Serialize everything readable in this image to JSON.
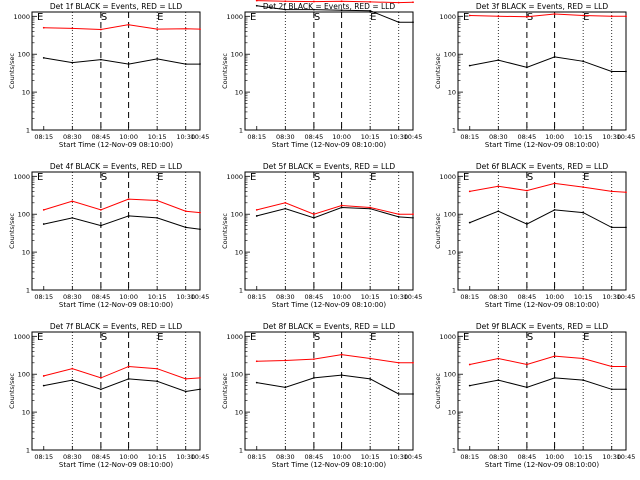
{
  "colors": {
    "events": "#000000",
    "lld": "#ff0000",
    "background": "#ffffff"
  },
  "shared": {
    "xlabel": "Start Time (12-Nov-09 08:10:00)",
    "ylabel": "Counts/sec",
    "x_ticks": [
      "08:15",
      "08:30",
      "08:45",
      "10:00",
      "10:15",
      "10:30",
      "10:45"
    ],
    "y_ticks": [
      "1",
      "10",
      "100",
      "1000"
    ],
    "markers": [
      "E",
      "S",
      "E"
    ]
  },
  "chart_data": [
    {
      "type": "line",
      "title": "Det 1f BLACK = Events, RED = LLD",
      "yscale": "log",
      "ylim": [
        1,
        1300
      ],
      "xlabel": "Start Time (12-Nov-09 08:10:00)",
      "ylabel": "Counts/sec",
      "grid": false,
      "legend": "none",
      "x": [
        "08:15",
        "08:30",
        "08:45",
        "10:00",
        "10:15",
        "10:30",
        "10:45"
      ],
      "series": [
        {
          "color": "#000000",
          "values": [
            80,
            60,
            72,
            55,
            75,
            55,
            55
          ]
        },
        {
          "color": "#ff0000",
          "values": [
            500,
            480,
            450,
            600,
            460,
            470,
            460
          ]
        }
      ]
    },
    {
      "type": "line",
      "title": "Det 2f BLACK = Events, RED = LLD",
      "yscale": "log",
      "ylim": [
        1,
        1300
      ],
      "xlabel": "Start Time (12-Nov-09 08:10:00)",
      "ylabel": "Counts/sec",
      "grid": false,
      "legend": "none",
      "x": [
        "08:15",
        "08:30",
        "08:45",
        "10:00",
        "10:15",
        "10:30",
        "10:45"
      ],
      "series": [
        {
          "color": "#000000",
          "values": [
            1900,
            1500,
            1500,
            1450,
            1400,
            700,
            700
          ]
        },
        {
          "color": "#ff0000",
          "values": [
            2600,
            2500,
            2450,
            2500,
            2400,
            2300,
            2350
          ]
        }
      ]
    },
    {
      "type": "line",
      "title": "Det 3f BLACK = Events, RED = LLD",
      "yscale": "log",
      "ylim": [
        1,
        1300
      ],
      "xlabel": "Start Time (12-Nov-09 08:10:00)",
      "ylabel": "Counts/sec",
      "grid": false,
      "legend": "none",
      "x": [
        "08:15",
        "08:30",
        "08:45",
        "10:00",
        "10:15",
        "10:30",
        "10:45"
      ],
      "series": [
        {
          "color": "#000000",
          "values": [
            50,
            70,
            45,
            85,
            65,
            35,
            35
          ]
        },
        {
          "color": "#ff0000",
          "values": [
            1050,
            1000,
            980,
            1150,
            1050,
            1000,
            1000
          ]
        }
      ]
    },
    {
      "type": "line",
      "title": "Det 4f BLACK = Events, RED = LLD",
      "yscale": "log",
      "ylim": [
        1,
        1300
      ],
      "xlabel": "Start Time (12-Nov-09 08:10:00)",
      "ylabel": "Counts/sec",
      "grid": false,
      "legend": "none",
      "x": [
        "08:15",
        "08:30",
        "08:45",
        "10:00",
        "10:15",
        "10:30",
        "10:45"
      ],
      "series": [
        {
          "color": "#000000",
          "values": [
            55,
            80,
            50,
            90,
            80,
            45,
            40
          ]
        },
        {
          "color": "#ff0000",
          "values": [
            130,
            220,
            130,
            250,
            230,
            120,
            110
          ]
        }
      ]
    },
    {
      "type": "line",
      "title": "Det 5f BLACK = Events, RED = LLD",
      "yscale": "log",
      "ylim": [
        1,
        1300
      ],
      "xlabel": "Start Time (12-Nov-09 08:10:00)",
      "ylabel": "Counts/sec",
      "grid": false,
      "legend": "none",
      "x": [
        "08:15",
        "08:30",
        "08:45",
        "10:00",
        "10:15",
        "10:30",
        "10:45"
      ],
      "series": [
        {
          "color": "#000000",
          "values": [
            90,
            140,
            80,
            150,
            140,
            85,
            80
          ]
        },
        {
          "color": "#ff0000",
          "values": [
            130,
            200,
            100,
            170,
            150,
            100,
            100
          ]
        }
      ]
    },
    {
      "type": "line",
      "title": "Det 6f BLACK = Events, RED = LLD",
      "yscale": "log",
      "ylim": [
        1,
        1300
      ],
      "xlabel": "Start Time (12-Nov-09 08:10:00)",
      "ylabel": "Counts/sec",
      "grid": false,
      "legend": "none",
      "x": [
        "08:15",
        "08:30",
        "08:45",
        "10:00",
        "10:15",
        "10:30",
        "10:45"
      ],
      "series": [
        {
          "color": "#000000",
          "values": [
            60,
            120,
            55,
            130,
            110,
            45,
            45
          ]
        },
        {
          "color": "#ff0000",
          "values": [
            400,
            550,
            420,
            650,
            520,
            400,
            380
          ]
        }
      ]
    },
    {
      "type": "line",
      "title": "Det 7f BLACK = Events, RED = LLD",
      "yscale": "log",
      "ylim": [
        1,
        1300
      ],
      "xlabel": "Start Time (12-Nov-09 08:10:00)",
      "ylabel": "Counts/sec",
      "grid": false,
      "legend": "none",
      "x": [
        "08:15",
        "08:30",
        "08:45",
        "10:00",
        "10:15",
        "10:30",
        "10:45"
      ],
      "series": [
        {
          "color": "#000000",
          "values": [
            50,
            70,
            40,
            75,
            65,
            35,
            40
          ]
        },
        {
          "color": "#ff0000",
          "values": [
            90,
            140,
            80,
            160,
            140,
            75,
            80
          ]
        }
      ]
    },
    {
      "type": "line",
      "title": "Det 8f BLACK = Events, RED = LLD",
      "yscale": "log",
      "ylim": [
        1,
        1300
      ],
      "xlabel": "Start Time (12-Nov-09 08:10:00)",
      "ylabel": "Counts/sec",
      "grid": false,
      "legend": "none",
      "x": [
        "08:15",
        "08:30",
        "08:45",
        "10:00",
        "10:15",
        "10:30",
        "10:45"
      ],
      "series": [
        {
          "color": "#000000",
          "values": [
            60,
            45,
            80,
            95,
            75,
            30,
            30
          ]
        },
        {
          "color": "#ff0000",
          "values": [
            220,
            230,
            250,
            330,
            260,
            200,
            200
          ]
        }
      ]
    },
    {
      "type": "line",
      "title": "Det 9f BLACK = Events, RED = LLD",
      "yscale": "log",
      "ylim": [
        1,
        1300
      ],
      "xlabel": "Start Time (12-Nov-09 08:10:00)",
      "ylabel": "Counts/sec",
      "grid": false,
      "legend": "none",
      "x": [
        "08:15",
        "08:30",
        "08:45",
        "10:00",
        "10:15",
        "10:30",
        "10:45"
      ],
      "series": [
        {
          "color": "#000000",
          "values": [
            50,
            70,
            45,
            80,
            70,
            40,
            40
          ]
        },
        {
          "color": "#ff0000",
          "values": [
            180,
            260,
            180,
            300,
            260,
            160,
            160
          ]
        }
      ]
    }
  ]
}
